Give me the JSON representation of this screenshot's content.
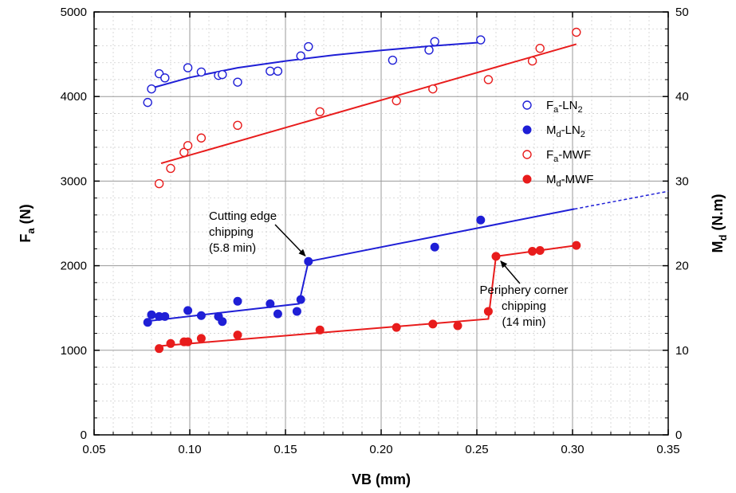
{
  "chart_data": {
    "type": "scatter",
    "xlabel": "VB (mm)",
    "ylabel": {
      "main": "F",
      "sub": "a",
      "unit": " (N)"
    },
    "ylabel_right": {
      "main": "M",
      "sub": "d",
      "unit": " (N.m)"
    },
    "xlim": [
      0.05,
      0.35
    ],
    "ylim": [
      0,
      5000
    ],
    "ylim_right": [
      0,
      50
    ],
    "xticks": [
      "0.05",
      "0.10",
      "0.15",
      "0.20",
      "0.25",
      "0.30",
      "0.35"
    ],
    "yticks": [
      "0",
      "1000",
      "2000",
      "3000",
      "4000",
      "5000"
    ],
    "yticks_right": [
      "0",
      "10",
      "20",
      "30",
      "40",
      "50"
    ],
    "grid": true,
    "legend_position": "right",
    "series": [
      {
        "label": {
          "main": "F",
          "sub": "a",
          "rest": "-LN",
          "sub2": "2"
        },
        "color": "#1f1fd6",
        "marker": "open-circle",
        "axis": "left",
        "points": [
          [
            0.078,
            3930
          ],
          [
            0.08,
            4090
          ],
          [
            0.084,
            4270
          ],
          [
            0.087,
            4220
          ],
          [
            0.099,
            4340
          ],
          [
            0.106,
            4290
          ],
          [
            0.115,
            4250
          ],
          [
            0.117,
            4260
          ],
          [
            0.125,
            4170
          ],
          [
            0.142,
            4300
          ],
          [
            0.146,
            4300
          ],
          [
            0.158,
            4480
          ],
          [
            0.162,
            4590
          ],
          [
            0.206,
            4430
          ],
          [
            0.225,
            4550
          ],
          [
            0.228,
            4650
          ],
          [
            0.252,
            4670
          ]
        ],
        "fit": [
          [
            0.08,
            4100
          ],
          [
            0.1,
            4225
          ],
          [
            0.125,
            4340
          ],
          [
            0.15,
            4420
          ],
          [
            0.175,
            4490
          ],
          [
            0.2,
            4545
          ],
          [
            0.225,
            4595
          ],
          [
            0.252,
            4640
          ]
        ]
      },
      {
        "label": {
          "main": "M",
          "sub": "d",
          "rest": "-LN",
          "sub2": "2"
        },
        "color": "#1f1fd6",
        "marker": "filled-circle",
        "axis": "right",
        "points": [
          [
            0.078,
            13.3
          ],
          [
            0.08,
            14.2
          ],
          [
            0.084,
            14.0
          ],
          [
            0.087,
            14.0
          ],
          [
            0.099,
            14.7
          ],
          [
            0.106,
            14.1
          ],
          [
            0.115,
            14.0
          ],
          [
            0.117,
            13.4
          ],
          [
            0.125,
            15.8
          ],
          [
            0.142,
            15.5
          ],
          [
            0.146,
            14.3
          ],
          [
            0.156,
            14.6
          ],
          [
            0.158,
            16.0
          ],
          [
            0.162,
            20.5
          ],
          [
            0.228,
            22.2
          ],
          [
            0.252,
            25.4
          ]
        ],
        "fit": [
          [
            0.076,
            13.4
          ],
          [
            0.157,
            15.5
          ],
          [
            0.162,
            20.5
          ],
          [
            0.301,
            26.7
          ]
        ],
        "fit_extrapolated": [
          [
            0.301,
            26.7
          ],
          [
            0.35,
            28.8
          ]
        ]
      },
      {
        "label": {
          "main": "F",
          "sub": "a",
          "rest": "-MWF",
          "sub2": ""
        },
        "color": "#e81c1c",
        "marker": "open-circle",
        "axis": "left",
        "points": [
          [
            0.084,
            2970
          ],
          [
            0.09,
            3150
          ],
          [
            0.097,
            3340
          ],
          [
            0.099,
            3420
          ],
          [
            0.106,
            3510
          ],
          [
            0.125,
            3660
          ],
          [
            0.168,
            3820
          ],
          [
            0.208,
            3950
          ],
          [
            0.227,
            4090
          ],
          [
            0.256,
            4200
          ],
          [
            0.279,
            4420
          ],
          [
            0.283,
            4570
          ],
          [
            0.302,
            4760
          ]
        ],
        "fit": [
          [
            0.085,
            3210
          ],
          [
            0.302,
            4620
          ]
        ]
      },
      {
        "label": {
          "main": "M",
          "sub": "d",
          "rest": "-MWF",
          "sub2": ""
        },
        "color": "#e81c1c",
        "marker": "filled-circle",
        "axis": "right",
        "points": [
          [
            0.084,
            10.2
          ],
          [
            0.09,
            10.8
          ],
          [
            0.097,
            11.0
          ],
          [
            0.099,
            11.0
          ],
          [
            0.106,
            11.4
          ],
          [
            0.125,
            11.8
          ],
          [
            0.168,
            12.4
          ],
          [
            0.208,
            12.7
          ],
          [
            0.227,
            13.1
          ],
          [
            0.24,
            12.9
          ],
          [
            0.256,
            14.6
          ],
          [
            0.26,
            21.1
          ],
          [
            0.279,
            21.7
          ],
          [
            0.283,
            21.8
          ],
          [
            0.302,
            22.4
          ]
        ],
        "fit": [
          [
            0.084,
            10.5
          ],
          [
            0.256,
            13.7
          ],
          [
            0.26,
            21.1
          ],
          [
            0.302,
            22.4
          ]
        ]
      }
    ],
    "annotations": [
      {
        "lines": [
          "Cutting edge",
          "chipping",
          "(5.8 min)"
        ],
        "arrow_to": [
          0.162,
          20.5
        ],
        "axis": "right"
      },
      {
        "lines": [
          "Periphery corner",
          "chipping",
          "(14 min)"
        ],
        "arrow_to": [
          0.26,
          21.1
        ],
        "axis": "right"
      }
    ]
  }
}
